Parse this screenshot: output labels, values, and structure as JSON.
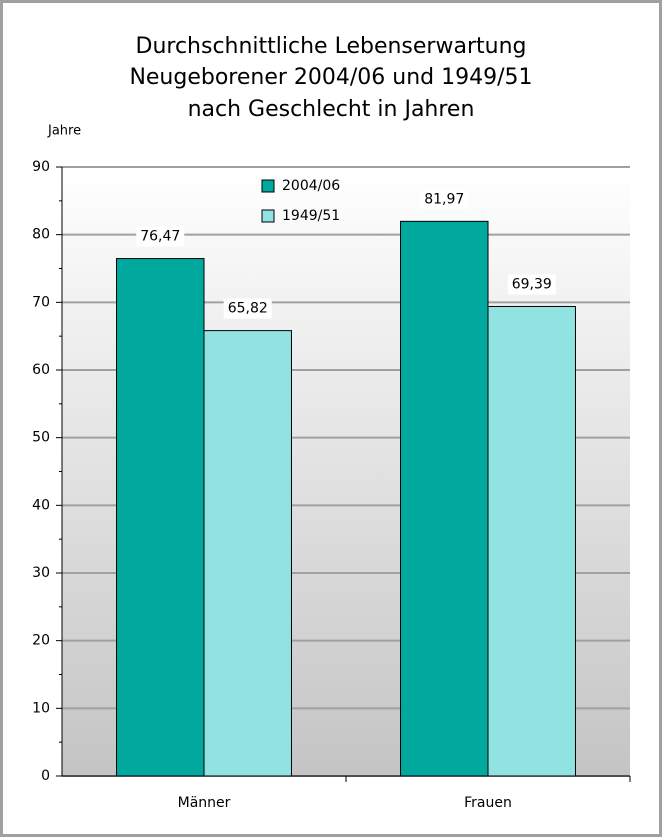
{
  "chart_data": {
    "type": "bar",
    "title": [
      "Durchschnittliche Lebenserwartung",
      "Neugeborener 2004/06 und 1949/51",
      "nach Geschlecht in Jahren"
    ],
    "y_label": "Jahre",
    "categories": [
      "Männer",
      "Frauen"
    ],
    "series": [
      {
        "name": "2004/06",
        "color": "#00a89e",
        "values": [
          76.47,
          81.97
        ],
        "value_labels": [
          "76,47",
          "81,97"
        ]
      },
      {
        "name": "1949/51",
        "color": "#90e3e1",
        "values": [
          65.82,
          69.39
        ],
        "value_labels": [
          "65,82",
          "69,39"
        ]
      }
    ],
    "ylim": [
      0,
      90
    ],
    "yticks": [
      0,
      10,
      20,
      30,
      40,
      50,
      60,
      70,
      80,
      90
    ],
    "grid": true,
    "legend": "top"
  }
}
